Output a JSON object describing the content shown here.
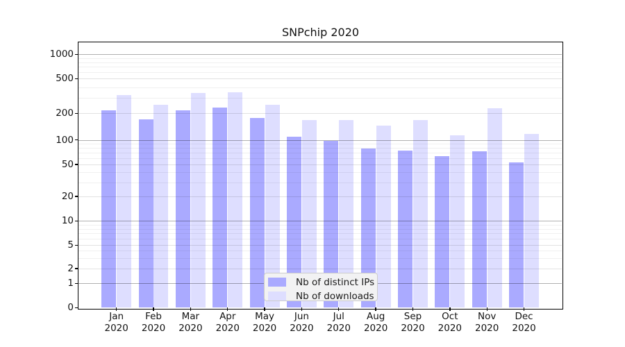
{
  "chart_data": {
    "type": "bar",
    "title": "SNPchip 2020",
    "categories": [
      "Jan",
      "Feb",
      "Mar",
      "Apr",
      "May",
      "Jun",
      "Jul",
      "Aug",
      "Sep",
      "Oct",
      "Nov",
      "Dec"
    ],
    "category_year": "2020",
    "series": [
      {
        "name": "Nb of distinct IPs",
        "color": "#aaaaff",
        "values": [
          215,
          172,
          215,
          235,
          176,
          108,
          98,
          79,
          74,
          63,
          73,
          53
        ]
      },
      {
        "name": "Nb of downloads",
        "color": "#dedeff",
        "values": [
          325,
          250,
          345,
          350,
          252,
          167,
          167,
          146,
          167,
          112,
          230,
          117
        ]
      }
    ],
    "xlabel": "",
    "ylabel": "",
    "yscale": "symlog",
    "yticks": [
      0,
      1,
      2,
      5,
      10,
      20,
      50,
      100,
      200,
      500,
      1000
    ],
    "ylim": [
      0,
      1400
    ],
    "grid": true,
    "legend_position": "lower-center",
    "colors": {
      "major_gridline": "#b0b0b0",
      "labeled_gridline": "#e2e2e2",
      "minor_gridline": "#f0f0f0",
      "spine": "#000000"
    }
  }
}
